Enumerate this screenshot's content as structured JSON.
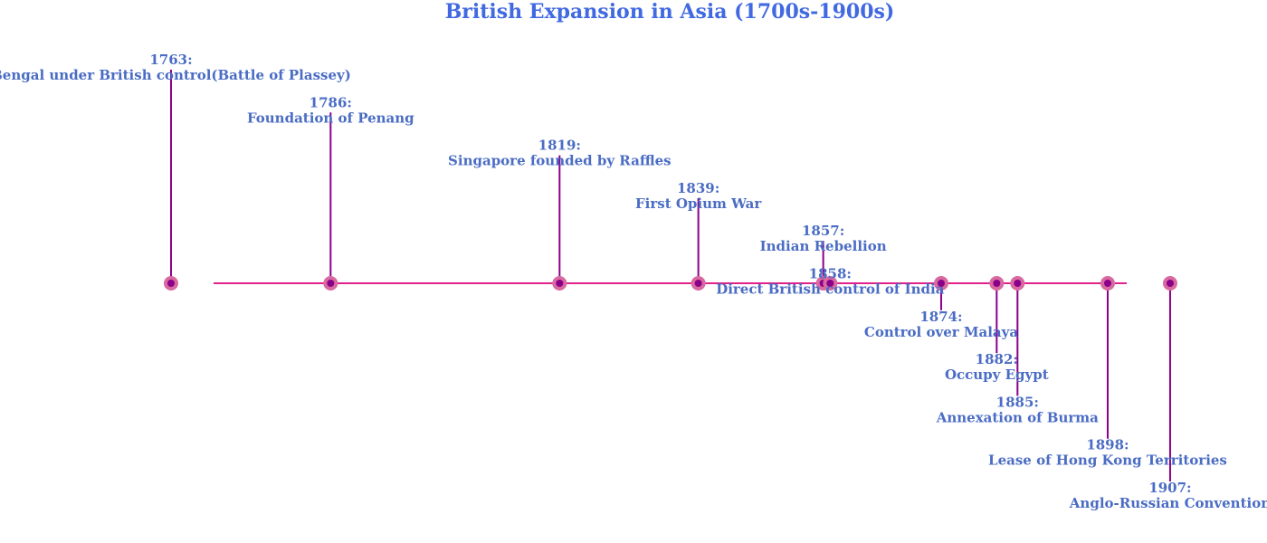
{
  "chart_data": {
    "type": "timeline",
    "title": "British Expansion in Asia (1700s-1900s)",
    "events": [
      {
        "date": {
          "value": 1763,
          "label": "1763:"
        },
        "event": "Bengal under British control(Battle of Plassey)"
      },
      {
        "date": {
          "value": 1786,
          "label": "1786:"
        },
        "event": "Foundation of Penang"
      },
      {
        "date": {
          "value": 1819,
          "label": "1819:"
        },
        "event": "Singapore founded by Raffles"
      },
      {
        "date": {
          "value": 1839,
          "label": "1839:"
        },
        "event": "First Opium War"
      },
      {
        "date": {
          "value": 1857,
          "label": "1857:"
        },
        "event": "Indian Rebellion"
      },
      {
        "date": {
          "value": 1858,
          "label": "1858:"
        },
        "event": "Direct British control of India"
      },
      {
        "date": {
          "value": 1874,
          "label": "1874:"
        },
        "event": "Control over Malaya"
      },
      {
        "date": {
          "value": 1882,
          "label": "1882:"
        },
        "event": "Occupy Egypt"
      },
      {
        "date": {
          "value": 1885,
          "label": "1885:"
        },
        "event": "Annexation of Burma"
      },
      {
        "date": {
          "value": 1898,
          "label": "1898:"
        },
        "event": "Lease of Hong Kong Territories"
      },
      {
        "date": {
          "value": 1907,
          "label": "1907:"
        },
        "event": "Anglo-Russian Convention"
      }
    ],
    "xlim": [
      1738.35,
      1920.96
    ],
    "color": "#8b008b",
    "line_color": "#e0218a",
    "marker_color": "#d86aa0",
    "text_color": "#4a6cc4"
  }
}
